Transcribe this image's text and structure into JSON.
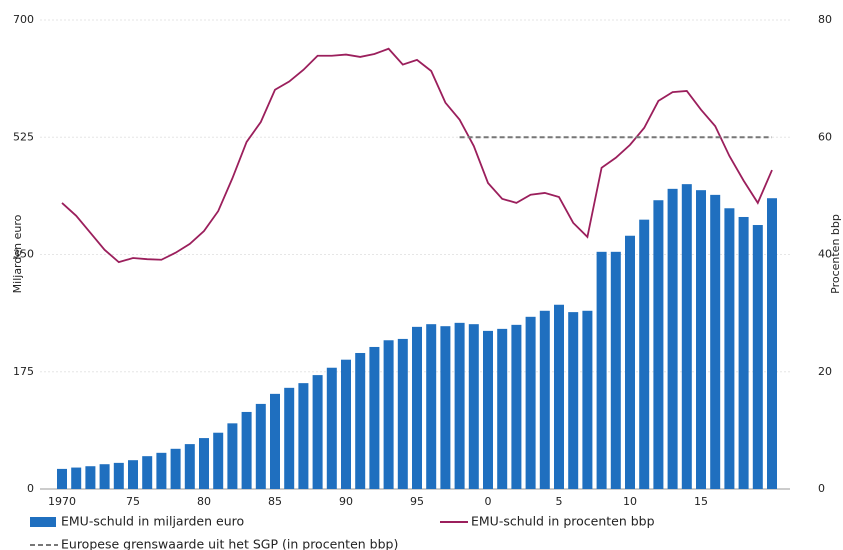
{
  "chart_data": {
    "type": "bar_line",
    "y_label": "Miljarden euro",
    "y2_label": "Procenten bbp",
    "categories": [
      "1970",
      null,
      null,
      null,
      null,
      "75",
      null,
      null,
      null,
      null,
      "80",
      null,
      null,
      null,
      null,
      "85",
      null,
      null,
      null,
      null,
      "90",
      null,
      null,
      null,
      null,
      "95",
      null,
      null,
      null,
      null,
      "0",
      null,
      null,
      null,
      null,
      "5",
      null,
      null,
      null,
      null,
      "10",
      null,
      null,
      null,
      null,
      "15",
      null,
      null,
      null,
      null,
      null
    ],
    "series": [
      {
        "name": "EMU-schuld in miljarden euro",
        "kind": "bar",
        "color": "#1f6fbf",
        "values": [
          30,
          32,
          34,
          37,
          39,
          43,
          49,
          54,
          60,
          67,
          76,
          84,
          98,
          115,
          127,
          142,
          151,
          158,
          170,
          181,
          193,
          203,
          212,
          222,
          224,
          242,
          246,
          243,
          248,
          246,
          236,
          239,
          245,
          257,
          266,
          275,
          264,
          266,
          354,
          354,
          378,
          402,
          431,
          448,
          455,
          446,
          439,
          419,
          406,
          394,
          434
        ]
      },
      {
        "name": "EMU-schuld in procenten bbp",
        "kind": "line",
        "axis": "y2",
        "color": "#9b1f5c",
        "values": [
          48.8,
          46.6,
          43.7,
          40.8,
          38.7,
          39.4,
          39.2,
          39.1,
          40.3,
          41.8,
          44,
          47.4,
          53,
          59.2,
          62.6,
          68.1,
          69.5,
          71.5,
          73.9,
          73.9,
          74.1,
          73.7,
          74.2,
          75.1,
          72.4,
          73.2,
          71.3,
          65.9,
          63,
          58.5,
          52.2,
          49.5,
          48.8,
          50.2,
          50.5,
          49.8,
          45.4,
          43,
          54.8,
          56.5,
          58.7,
          61.6,
          66.2,
          67.7,
          67.9,
          64.7,
          61.9,
          56.8,
          52.6,
          48.8,
          54.4
        ]
      },
      {
        "name": "Europese grenswaarde uit het SGP (in procenten bbp)_",
        "kind": "dashed",
        "axis": "y2",
        "color": "#777777",
        "values": [
          null,
          null,
          null,
          null,
          null,
          null,
          null,
          null,
          null,
          null,
          null,
          null,
          null,
          null,
          null,
          null,
          null,
          null,
          null,
          null,
          null,
          null,
          null,
          null,
          null,
          null,
          null,
          null,
          60,
          60,
          60,
          60,
          60,
          60,
          60,
          60,
          60,
          60,
          60,
          60,
          60,
          60,
          60,
          60,
          60,
          60,
          60,
          60,
          60,
          60,
          60
        ]
      }
    ],
    "ylim": [
      0,
      700
    ],
    "yticks": [
      0,
      175,
      350,
      525,
      700
    ],
    "y2lim": [
      0,
      80
    ],
    "y2ticks": [
      0,
      20,
      40,
      60,
      80
    ],
    "grid": true
  }
}
